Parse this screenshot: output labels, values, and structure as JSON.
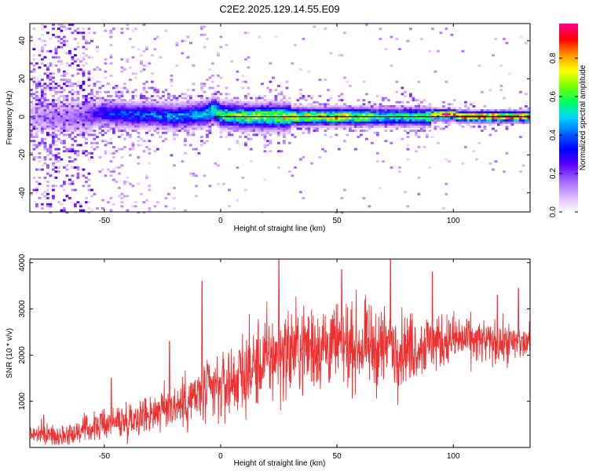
{
  "figure": {
    "title": "C2E2.2025.129.14.55.E09"
  },
  "colors": {
    "snr_line": "#ee3030",
    "reference_line": "#000000",
    "colormap": [
      "#ffffff",
      "#d9b3ff",
      "#a066ff",
      "#5a00ff",
      "#0000ff",
      "#0064ff",
      "#00d2ff",
      "#00ff64",
      "#78ff00",
      "#ffff00",
      "#ff9600",
      "#ff0000",
      "#ff0096"
    ]
  },
  "chart_data": [
    {
      "type": "heatmap",
      "xlabel": "Height of straight line (km)",
      "ylabel": "Frequency (Hz)",
      "xlim": [
        -82,
        133
      ],
      "ylim": [
        -50,
        49
      ],
      "xticks": [
        -50,
        0,
        50,
        100
      ],
      "yticks": [
        -40,
        -20,
        0,
        20,
        40
      ],
      "colorbar": {
        "label": "Normalized spectral amplitude",
        "range": [
          0,
          0.98
        ],
        "ticks": [
          "0.0",
          "0.2",
          "0.4",
          "0.6",
          "0.8"
        ]
      },
      "ridge": {
        "x": [
          -82,
          -60,
          -50,
          -40,
          -30,
          -20,
          -10,
          -5,
          -3,
          0,
          10,
          20,
          30,
          40,
          50,
          60,
          70,
          80,
          90,
          92,
          100,
          103,
          110,
          133
        ],
        "freq": [
          0,
          0,
          2,
          1,
          1,
          0,
          1,
          2,
          4,
          1,
          0,
          0,
          0,
          0,
          0,
          0,
          0,
          0,
          0,
          1,
          1,
          0,
          0,
          0
        ],
        "amplitude": [
          0.1,
          0.15,
          0.35,
          0.4,
          0.4,
          0.45,
          0.45,
          0.55,
          0.6,
          0.6,
          0.65,
          0.7,
          0.75,
          0.8,
          0.8,
          0.75,
          0.6,
          0.6,
          0.7,
          0.95,
          0.95,
          0.98,
          0.98,
          0.98
        ]
      },
      "reference_line_freq": 0
    },
    {
      "type": "line",
      "xlabel": "Height of straight line (km)",
      "ylabel": "SNR (10 * v/v)",
      "xlim": [
        -82,
        133
      ],
      "ylim": [
        0,
        4080
      ],
      "xticks": [
        -50,
        0,
        50,
        100
      ],
      "yticks": [
        1000,
        2000,
        3000,
        4000
      ],
      "series": [
        {
          "trend_x": [
            -82,
            -70,
            -60,
            -50,
            -40,
            -30,
            -20,
            -10,
            0,
            10,
            20,
            30,
            40,
            50,
            60,
            70,
            80,
            90,
            100,
            110,
            120,
            133
          ],
          "trend_y": [
            300,
            250,
            350,
            500,
            600,
            750,
            900,
            1100,
            1300,
            1600,
            1900,
            2100,
            2200,
            2200,
            2200,
            2150,
            2150,
            2250,
            2350,
            2300,
            2250,
            2250
          ],
          "spread": [
            200,
            200,
            250,
            300,
            350,
            400,
            500,
            600,
            700,
            800,
            900,
            900,
            900,
            800,
            800,
            800,
            700,
            600,
            500,
            450,
            400,
            400
          ],
          "peaks_x": [
            -76,
            -47,
            -22,
            -8,
            25,
            52,
            73,
            91,
            119,
            128
          ],
          "peaks_y": [
            700,
            1500,
            2300,
            3600,
            4080,
            3850,
            4080,
            3800,
            3300,
            3450
          ]
        }
      ]
    }
  ]
}
